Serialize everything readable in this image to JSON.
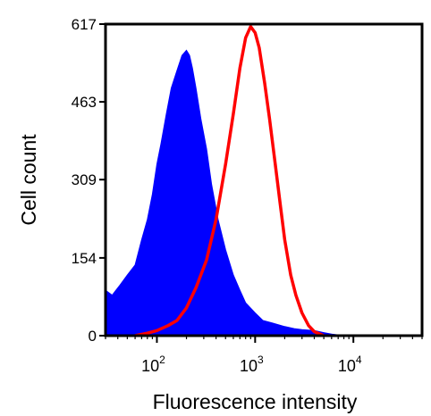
{
  "chart_data": {
    "type": "area",
    "xlabel": "Fluorescence intensity",
    "ylabel": "Cell count",
    "x_scale": "log",
    "xlim": [
      30,
      50000
    ],
    "ylim": [
      0,
      617
    ],
    "y_ticks": [
      "0",
      "154",
      "309",
      "463",
      "617"
    ],
    "x_ticks": [
      {
        "base": "10",
        "exp": "2",
        "value": 100
      },
      {
        "base": "10",
        "exp": "3",
        "value": 1000
      },
      {
        "base": "10",
        "exp": "4",
        "value": 10000
      }
    ],
    "grid": false,
    "legend": "none",
    "series": [
      {
        "style": "filled",
        "color": "#0000ff",
        "x": [
          30,
          35,
          42,
          50,
          60,
          70,
          80,
          90,
          100,
          110,
          125,
          140,
          160,
          180,
          200,
          215,
          230,
          250,
          280,
          320,
          360,
          420,
          500,
          600,
          700,
          800,
          1000,
          1200,
          1500,
          2000,
          2500,
          3000,
          4000,
          5000,
          6000,
          8000
        ],
        "y": [
          90,
          80,
          100,
          120,
          140,
          190,
          230,
          280,
          340,
          380,
          440,
          490,
          525,
          555,
          565,
          555,
          530,
          490,
          430,
          370,
          300,
          230,
          170,
          120,
          90,
          65,
          45,
          30,
          25,
          18,
          14,
          12,
          10,
          6,
          3,
          0
        ]
      },
      {
        "style": "outline",
        "color": "#ff0000",
        "x": [
          60,
          80,
          100,
          130,
          160,
          200,
          250,
          320,
          400,
          500,
          600,
          700,
          800,
          900,
          1000,
          1100,
          1250,
          1400,
          1600,
          1800,
          2000,
          2300,
          2600,
          3000,
          3500,
          4000,
          5000
        ],
        "y": [
          0,
          5,
          10,
          20,
          30,
          55,
          95,
          150,
          230,
          340,
          440,
          530,
          590,
          612,
          600,
          570,
          500,
          430,
          340,
          260,
          190,
          120,
          80,
          45,
          20,
          8,
          0
        ]
      }
    ]
  }
}
